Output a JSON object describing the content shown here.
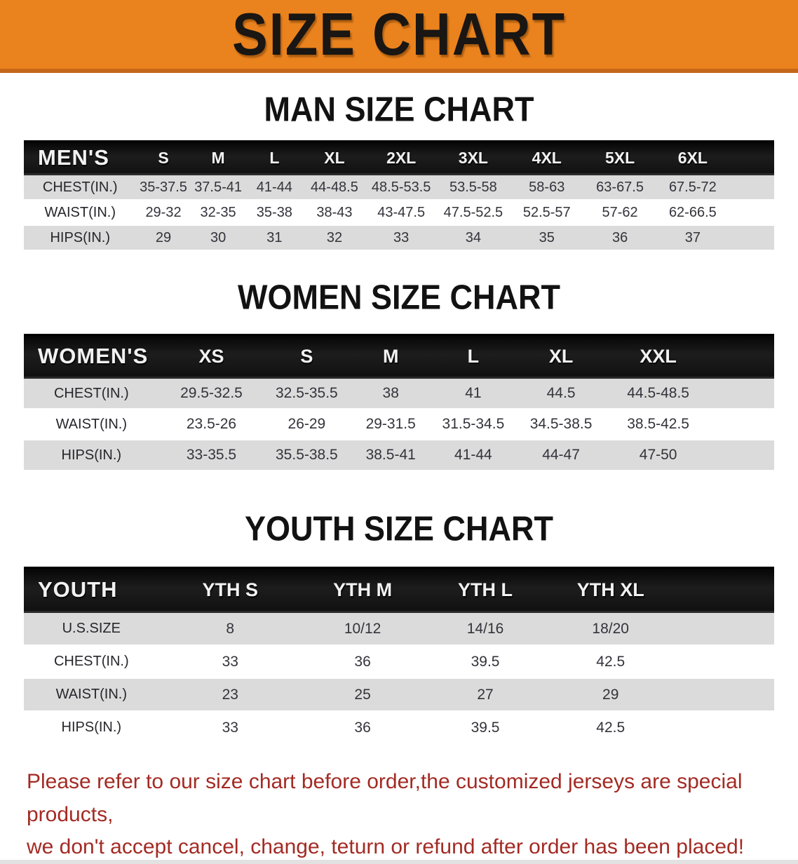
{
  "banner": {
    "title": "SIZE CHART",
    "bg_color": "#EA831E",
    "edge_color": "#C4661A",
    "text_color": "#191613"
  },
  "sections": [
    {
      "heading": "MAN SIZE CHART",
      "table": {
        "header_label": "MEN'S",
        "columns": [
          "S",
          "M",
          "L",
          "XL",
          "2XL",
          "3XL",
          "4XL",
          "5XL",
          "6XL"
        ],
        "rows": [
          {
            "label": "CHEST(IN.)",
            "values": [
              "35-37.5",
              "37.5-41",
              "41-44",
              "44-48.5",
              "48.5-53.5",
              "53.5-58",
              "58-63",
              "63-67.5",
              "67.5-72"
            ]
          },
          {
            "label": "WAIST(IN.)",
            "values": [
              "29-32",
              "32-35",
              "35-38",
              "38-43",
              "43-47.5",
              "47.5-52.5",
              "52.5-57",
              "57-62",
              "62-66.5"
            ]
          },
          {
            "label": "HIPS(IN.)",
            "values": [
              "29",
              "30",
              "31",
              "32",
              "33",
              "34",
              "35",
              "36",
              "37"
            ]
          }
        ]
      }
    },
    {
      "heading": "WOMEN SIZE CHART",
      "table": {
        "header_label": "WOMEN'S",
        "columns": [
          "XS",
          "S",
          "M",
          "L",
          "XL",
          "XXL"
        ],
        "rows": [
          {
            "label": "CHEST(IN.)",
            "values": [
              "29.5-32.5",
              "32.5-35.5",
              "38",
              "41",
              "44.5",
              "44.5-48.5"
            ]
          },
          {
            "label": "WAIST(IN.)",
            "values": [
              "23.5-26",
              "26-29",
              "29-31.5",
              "31.5-34.5",
              "34.5-38.5",
              "38.5-42.5"
            ]
          },
          {
            "label": "HIPS(IN.)",
            "values": [
              "33-35.5",
              "35.5-38.5",
              "38.5-41",
              "41-44",
              "44-47",
              "47-50"
            ]
          }
        ]
      }
    },
    {
      "heading": "YOUTH SIZE CHART",
      "table": {
        "header_label": "YOUTH",
        "columns": [
          "YTH S",
          "YTH M",
          "YTH L",
          "YTH XL"
        ],
        "rows": [
          {
            "label": "U.S.SIZE",
            "values": [
              "8",
              "10/12",
              "14/16",
              "18/20"
            ]
          },
          {
            "label": "CHEST(IN.)",
            "values": [
              "33",
              "36",
              "39.5",
              "42.5"
            ]
          },
          {
            "label": "WAIST(IN.)",
            "values": [
              "23",
              "25",
              "27",
              "29"
            ]
          },
          {
            "label": "HIPS(IN.)",
            "values": [
              "33",
              "36",
              "39.5",
              "42.5"
            ]
          }
        ]
      }
    }
  ],
  "disclaimer": {
    "line1": "Please refer to our size chart before order,the customized jerseys are special products,",
    "line2": "we don't accept cancel, change, teturn or refund after order has been placed!",
    "color": "#A32B24"
  }
}
